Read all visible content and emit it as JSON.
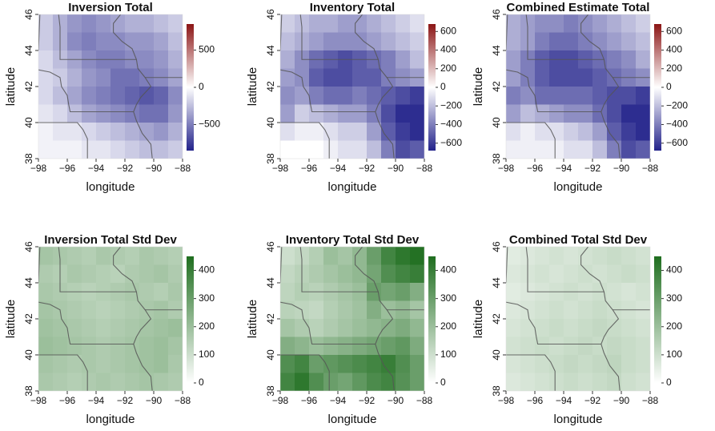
{
  "chart_data": [
    {
      "type": "heatmap",
      "title": "Inversion Total",
      "xlabel": "longitude",
      "ylabel": "latitude",
      "x": [
        -97.5,
        -96.5,
        -95.5,
        -94.5,
        -93.5,
        -92.5,
        -91.5,
        -90.5,
        -89.5,
        -88.5
      ],
      "y": [
        45.5,
        44.5,
        43.5,
        42.5,
        41.5,
        40.5,
        39.5,
        38.5
      ],
      "z": [
        [
          -200,
          -300,
          -400,
          -450,
          -400,
          -350,
          -300,
          -300,
          -250,
          -200
        ],
        [
          -200,
          -300,
          -450,
          -500,
          -450,
          -450,
          -400,
          -400,
          -350,
          -250
        ],
        [
          -150,
          -250,
          -350,
          -450,
          -500,
          -500,
          -450,
          -450,
          -400,
          -300
        ],
        [
          -150,
          -200,
          -300,
          -400,
          -450,
          -550,
          -550,
          -500,
          -450,
          -350
        ],
        [
          -150,
          -250,
          -350,
          -450,
          -500,
          -550,
          -600,
          -650,
          -600,
          -450
        ],
        [
          -100,
          -150,
          -250,
          -350,
          -400,
          -450,
          -500,
          -550,
          -550,
          -400
        ],
        [
          -50,
          -100,
          -100,
          -150,
          -200,
          -250,
          -300,
          -350,
          -400,
          -300
        ],
        [
          -50,
          -50,
          -50,
          -100,
          -100,
          -150,
          -200,
          -250,
          -250,
          -200
        ]
      ],
      "xlim": [
        -98,
        -88
      ],
      "ylim": [
        38,
        46
      ],
      "xticks": [
        {
          "value": -98,
          "label": "−98"
        },
        {
          "value": -96,
          "label": "−96"
        },
        {
          "value": -94,
          "label": "−94"
        },
        {
          "value": -92,
          "label": "−92"
        },
        {
          "value": -90,
          "label": "−90"
        },
        {
          "value": -88,
          "label": "−88"
        }
      ],
      "yticks": [
        38,
        40,
        42,
        44,
        46
      ],
      "zlim": [
        -850,
        850
      ],
      "zticks": [
        {
          "value": -500,
          "label": "−500"
        },
        0,
        500
      ],
      "colors": [
        "#23238b",
        "#ffffff",
        "#8b1515"
      ]
    },
    {
      "type": "heatmap",
      "title": "Inventory Total",
      "xlabel": "longitude",
      "ylabel": "latitude",
      "x": [
        -97.5,
        -96.5,
        -95.5,
        -94.5,
        -93.5,
        -92.5,
        -91.5,
        -90.5,
        -89.5,
        -88.5
      ],
      "y": [
        45.5,
        44.5,
        43.5,
        42.5,
        41.5,
        40.5,
        39.5,
        38.5
      ],
      "z": [
        [
          -150,
          -200,
          -250,
          -250,
          -300,
          -300,
          -250,
          -200,
          -150,
          -100
        ],
        [
          -200,
          -250,
          -300,
          -350,
          -350,
          -350,
          -300,
          -250,
          -200,
          -150
        ],
        [
          -250,
          -350,
          -450,
          -500,
          -550,
          -500,
          -450,
          -400,
          -300,
          -200
        ],
        [
          -300,
          -350,
          -500,
          -550,
          -550,
          -500,
          -500,
          -400,
          -350,
          -300
        ],
        [
          -350,
          -300,
          -400,
          -450,
          -450,
          -400,
          -450,
          -500,
          -550,
          -600
        ],
        [
          -300,
          -150,
          -200,
          -250,
          -300,
          -300,
          -400,
          -550,
          -650,
          -650
        ],
        [
          -100,
          -50,
          -50,
          -100,
          -150,
          -150,
          -300,
          -500,
          -600,
          -650
        ],
        [
          0,
          0,
          0,
          -50,
          -100,
          -100,
          -200,
          -400,
          -550,
          -500
        ]
      ],
      "xlim": [
        -98,
        -88
      ],
      "ylim": [
        38,
        46
      ],
      "xticks": [
        {
          "value": -98,
          "label": "−98"
        },
        {
          "value": -96,
          "label": "−96"
        },
        {
          "value": -94,
          "label": "−94"
        },
        {
          "value": -92,
          "label": "−92"
        },
        {
          "value": -90,
          "label": "−90"
        },
        {
          "value": -88,
          "label": "−88"
        }
      ],
      "yticks": [
        38,
        40,
        42,
        44,
        46
      ],
      "zlim": [
        -680,
        680
      ],
      "zticks": [
        {
          "value": -600,
          "label": "−600"
        },
        {
          "value": -400,
          "label": "−400"
        },
        {
          "value": -200,
          "label": "−200"
        },
        0,
        200,
        400,
        600
      ],
      "colors": [
        "#23238b",
        "#ffffff",
        "#8b1515"
      ]
    },
    {
      "type": "heatmap",
      "title": "Combined Estimate Total",
      "xlabel": "longitude",
      "ylabel": "latitude",
      "x": [
        -97.5,
        -96.5,
        -95.5,
        -94.5,
        -93.5,
        -92.5,
        -91.5,
        -90.5,
        -89.5,
        -88.5
      ],
      "y": [
        45.5,
        44.5,
        43.5,
        42.5,
        41.5,
        40.5,
        39.5,
        38.5
      ],
      "z": [
        [
          -250,
          -300,
          -350,
          -350,
          -400,
          -350,
          -300,
          -250,
          -200,
          -150
        ],
        [
          -250,
          -300,
          -400,
          -450,
          -450,
          -400,
          -350,
          -300,
          -250,
          -200
        ],
        [
          -300,
          -400,
          -500,
          -550,
          -550,
          -500,
          -450,
          -400,
          -350,
          -250
        ],
        [
          -300,
          -400,
          -500,
          -550,
          -550,
          -550,
          -500,
          -450,
          -400,
          -350
        ],
        [
          -400,
          -350,
          -450,
          -450,
          -450,
          -450,
          -500,
          -550,
          -550,
          -600
        ],
        [
          -300,
          -200,
          -250,
          -300,
          -350,
          -350,
          -450,
          -550,
          -650,
          -650
        ],
        [
          -100,
          -50,
          -100,
          -100,
          -150,
          -200,
          -300,
          -500,
          -600,
          -650
        ],
        [
          -50,
          -50,
          -50,
          -50,
          -100,
          -100,
          -200,
          -400,
          -550,
          -500
        ]
      ],
      "xlim": [
        -98,
        -88
      ],
      "ylim": [
        38,
        46
      ],
      "xticks": [
        {
          "value": -98,
          "label": "−98"
        },
        {
          "value": -96,
          "label": "−96"
        },
        {
          "value": -94,
          "label": "−94"
        },
        {
          "value": -92,
          "label": "−92"
        },
        {
          "value": -90,
          "label": "−90"
        },
        {
          "value": -88,
          "label": "−88"
        }
      ],
      "yticks": [
        38,
        40,
        42,
        44,
        46
      ],
      "zlim": [
        -680,
        680
      ],
      "zticks": [
        {
          "value": -600,
          "label": "−600"
        },
        {
          "value": -400,
          "label": "−400"
        },
        {
          "value": -200,
          "label": "−200"
        },
        0,
        200,
        400,
        600
      ],
      "colors": [
        "#23238b",
        "#ffffff",
        "#8b1515"
      ]
    },
    {
      "type": "heatmap",
      "title": "Inversion Total Std Dev",
      "xlabel": "longitude",
      "ylabel": "latitude",
      "x": [
        -97.5,
        -96.5,
        -95.5,
        -94.5,
        -93.5,
        -92.5,
        -91.5,
        -90.5,
        -89.5,
        -88.5
      ],
      "y": [
        45.5,
        44.5,
        43.5,
        42.5,
        41.5,
        40.5,
        39.5,
        38.5
      ],
      "z": [
        [
          180,
          170,
          160,
          150,
          170,
          160,
          150,
          170,
          160,
          150
        ],
        [
          160,
          150,
          170,
          160,
          150,
          140,
          160,
          170,
          180,
          160
        ],
        [
          170,
          160,
          150,
          140,
          150,
          160,
          170,
          160,
          150,
          170
        ],
        [
          180,
          170,
          160,
          150,
          140,
          150,
          160,
          170,
          180,
          160
        ],
        [
          190,
          180,
          170,
          160,
          150,
          160,
          170,
          180,
          190,
          200
        ],
        [
          200,
          190,
          180,
          170,
          160,
          170,
          180,
          190,
          200,
          180
        ],
        [
          180,
          170,
          160,
          170,
          160,
          170,
          180,
          190,
          200,
          170
        ],
        [
          170,
          160,
          150,
          160,
          170,
          160,
          170,
          180,
          170,
          160
        ]
      ],
      "xlim": [
        -98,
        -88
      ],
      "ylim": [
        38,
        46
      ],
      "xticks": [
        {
          "value": -98,
          "label": "−98"
        },
        {
          "value": -96,
          "label": "−96"
        },
        {
          "value": -94,
          "label": "−94"
        },
        {
          "value": -92,
          "label": "−92"
        },
        {
          "value": -90,
          "label": "−90"
        },
        {
          "value": -88,
          "label": "−88"
        }
      ],
      "yticks": [
        38,
        40,
        42,
        44,
        46
      ],
      "zlim": [
        0,
        450
      ],
      "zticks": [
        0,
        100,
        200,
        300,
        400
      ],
      "colors": [
        "#ffffff",
        "#1f6e1f"
      ]
    },
    {
      "type": "heatmap",
      "title": "Inventory Total Std Dev",
      "xlabel": "longitude",
      "ylabel": "latitude",
      "x": [
        -97.5,
        -96.5,
        -95.5,
        -94.5,
        -93.5,
        -92.5,
        -91.5,
        -90.5,
        -89.5,
        -88.5
      ],
      "y": [
        45.5,
        44.5,
        43.5,
        42.5,
        41.5,
        40.5,
        39.5,
        38.5
      ],
      "z": [
        [
          100,
          120,
          150,
          200,
          180,
          220,
          300,
          380,
          420,
          440
        ],
        [
          120,
          140,
          160,
          180,
          200,
          220,
          280,
          350,
          380,
          400
        ],
        [
          130,
          150,
          140,
          160,
          180,
          200,
          300,
          280,
          300,
          250
        ],
        [
          140,
          130,
          120,
          150,
          170,
          190,
          250,
          200,
          220,
          180
        ],
        [
          180,
          160,
          140,
          160,
          180,
          200,
          220,
          240,
          260,
          220
        ],
        [
          250,
          230,
          200,
          220,
          240,
          260,
          280,
          300,
          320,
          260
        ],
        [
          350,
          380,
          300,
          320,
          340,
          360,
          380,
          400,
          350,
          300
        ],
        [
          380,
          420,
          350,
          300,
          280,
          320,
          360,
          380,
          340,
          300
        ]
      ],
      "xlim": [
        -98,
        -88
      ],
      "ylim": [
        38,
        46
      ],
      "xticks": [
        {
          "value": -98,
          "label": "−98"
        },
        {
          "value": -96,
          "label": "−96"
        },
        {
          "value": -94,
          "label": "−94"
        },
        {
          "value": -92,
          "label": "−92"
        },
        {
          "value": -90,
          "label": "−90"
        },
        {
          "value": -88,
          "label": "−88"
        }
      ],
      "yticks": [
        38,
        40,
        42,
        44,
        46
      ],
      "zlim": [
        0,
        450
      ],
      "zticks": [
        0,
        100,
        200,
        300,
        400
      ],
      "colors": [
        "#ffffff",
        "#1f6e1f"
      ]
    },
    {
      "type": "heatmap",
      "title": "Combined Total Std Dev",
      "xlabel": "longitude",
      "ylabel": "latitude",
      "x": [
        -97.5,
        -96.5,
        -95.5,
        -94.5,
        -93.5,
        -92.5,
        -91.5,
        -90.5,
        -89.5,
        -88.5
      ],
      "y": [
        45.5,
        44.5,
        43.5,
        42.5,
        41.5,
        40.5,
        39.5,
        38.5
      ],
      "z": [
        [
          60,
          70,
          80,
          90,
          80,
          90,
          100,
          110,
          100,
          90
        ],
        [
          70,
          80,
          90,
          80,
          90,
          100,
          90,
          100,
          110,
          100
        ],
        [
          60,
          70,
          80,
          90,
          100,
          90,
          100,
          90,
          80,
          90
        ],
        [
          70,
          80,
          90,
          100,
          90,
          100,
          110,
          100,
          90,
          80
        ],
        [
          80,
          90,
          100,
          110,
          100,
          110,
          120,
          110,
          100,
          90
        ],
        [
          90,
          100,
          110,
          100,
          110,
          120,
          110,
          120,
          110,
          100
        ],
        [
          80,
          90,
          100,
          110,
          120,
          110,
          120,
          130,
          110,
          100
        ],
        [
          70,
          80,
          90,
          100,
          110,
          100,
          110,
          120,
          100,
          90
        ]
      ],
      "xlim": [
        -98,
        -88
      ],
      "ylim": [
        38,
        46
      ],
      "xticks": [
        {
          "value": -98,
          "label": "−98"
        },
        {
          "value": -96,
          "label": "−96"
        },
        {
          "value": -94,
          "label": "−94"
        },
        {
          "value": -92,
          "label": "−92"
        },
        {
          "value": -90,
          "label": "−90"
        },
        {
          "value": -88,
          "label": "−88"
        }
      ],
      "yticks": [
        38,
        40,
        42,
        44,
        46
      ],
      "zlim": [
        0,
        450
      ],
      "zticks": [
        0,
        100,
        200,
        300,
        400
      ],
      "colors": [
        "#ffffff",
        "#1f6e1f"
      ]
    }
  ]
}
